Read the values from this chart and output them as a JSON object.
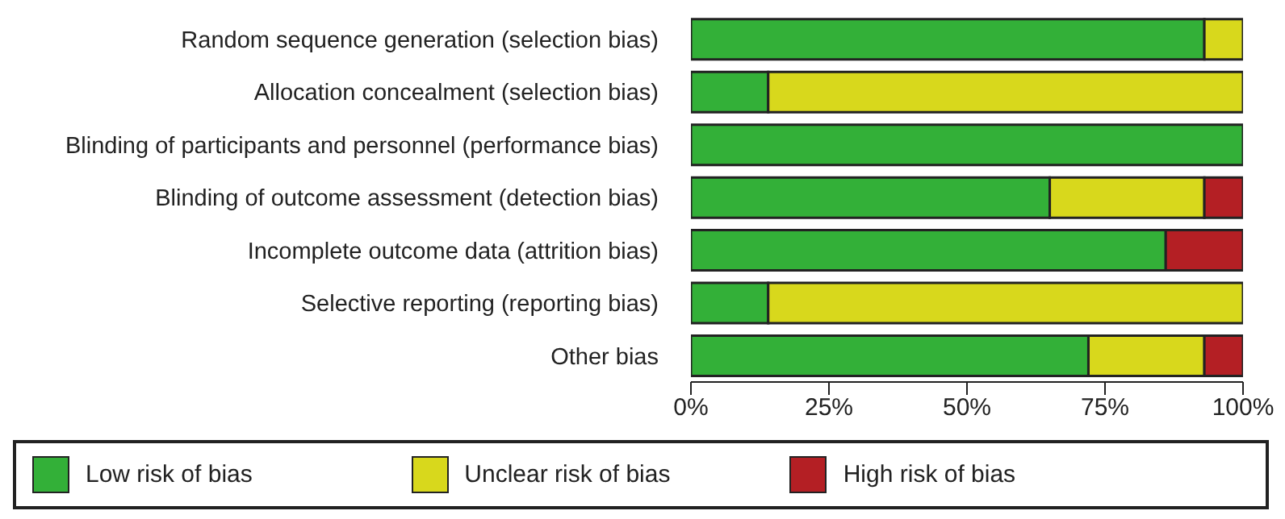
{
  "chart_data": {
    "type": "bar",
    "orientation": "horizontal",
    "stacked": true,
    "categories": [
      "Random sequence generation (selection bias)",
      "Allocation concealment (selection bias)",
      "Blinding of participants and personnel (performance bias)",
      "Blinding of outcome assessment (detection bias)",
      "Incomplete outcome data (attrition bias)",
      "Selective reporting (reporting bias)",
      "Other bias"
    ],
    "series": [
      {
        "name": "Low risk of bias",
        "color": "#33b038",
        "values": [
          93,
          14,
          100,
          65,
          86,
          14,
          72
        ]
      },
      {
        "name": "Unclear risk of bias",
        "color": "#d8d81c",
        "values": [
          7,
          86,
          0,
          28,
          0,
          86,
          21
        ]
      },
      {
        "name": "High risk of bias",
        "color": "#b41f24",
        "values": [
          0,
          0,
          0,
          7,
          14,
          0,
          7
        ]
      }
    ],
    "xlim": [
      0,
      100
    ],
    "xticks": [
      {
        "value": 0,
        "label": "0%"
      },
      {
        "value": 25,
        "label": "25%"
      },
      {
        "value": 50,
        "label": "50%"
      },
      {
        "value": 75,
        "label": "75%"
      },
      {
        "value": 100,
        "label": "100%"
      }
    ],
    "grid": false,
    "legend": "bottom"
  }
}
